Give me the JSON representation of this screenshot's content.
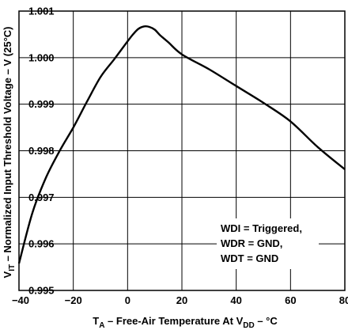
{
  "chart_data": {
    "type": "line",
    "xlabel": {
      "main": "T",
      "sub": "A",
      "rest": " – Free-Air Temperature At V",
      "sub2": "DD",
      "rest2": " – °C"
    },
    "ylabel": {
      "main": "V",
      "sub": "IT",
      "rest": " – Normalized Input Threshold Voltage – V (25°C)"
    },
    "xlim": [
      -40,
      80
    ],
    "ylim": [
      0.995,
      1.001
    ],
    "x_ticks": [
      -40,
      -20,
      0,
      20,
      40,
      60,
      80
    ],
    "x_tick_labels": [
      "−40",
      "−20",
      "0",
      "20",
      "40",
      "60",
      "80"
    ],
    "y_ticks": [
      0.995,
      0.996,
      0.997,
      0.998,
      0.999,
      1.0,
      1.001
    ],
    "y_tick_labels": [
      "0.995",
      "0.996",
      "0.997",
      "0.998",
      "0.999",
      "1.000",
      "1.001"
    ],
    "grid": true,
    "annotation": [
      "WDI = Triggered,",
      "WDR = GND,",
      "WDT = GND"
    ],
    "series": [
      {
        "x": [
          -40,
          -35,
          -30,
          -25,
          -20,
          -15,
          -10,
          -5,
          0,
          2,
          4,
          6,
          8,
          10,
          12,
          15,
          20,
          30,
          40,
          50,
          60,
          70,
          80
        ],
        "y": [
          0.99558,
          0.99668,
          0.99743,
          0.998,
          0.9985,
          0.99905,
          0.99958,
          0.99996,
          1.00035,
          1.0005,
          1.00062,
          1.00067,
          1.00066,
          1.0006,
          1.00048,
          1.00033,
          1.00007,
          0.99975,
          0.99939,
          0.99903,
          0.99863,
          0.99808,
          0.9976
        ]
      }
    ]
  }
}
